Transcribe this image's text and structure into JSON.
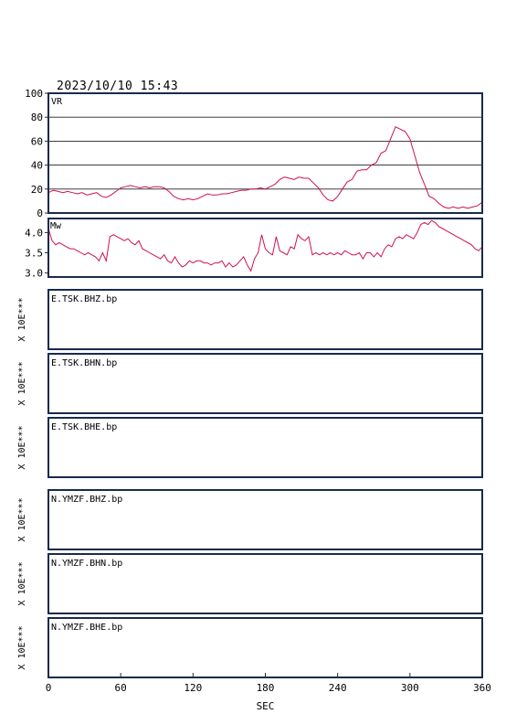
{
  "header": {
    "datetime": "2023/10/10  15:43"
  },
  "colors": {
    "line": "#d0104c",
    "frame": "#1a2a4a",
    "text": "#000000"
  },
  "chart_data": [
    {
      "type": "line",
      "label": "VR",
      "ylim": [
        0,
        100
      ],
      "yticks": [
        "0",
        "20",
        "40",
        "60",
        "80",
        "100"
      ],
      "grid": true,
      "x": [
        0,
        4,
        8,
        12,
        16,
        20,
        24,
        28,
        32,
        36,
        40,
        44,
        48,
        52,
        56,
        60,
        64,
        68,
        72,
        76,
        80,
        84,
        88,
        92,
        96,
        100,
        104,
        108,
        112,
        116,
        120,
        124,
        128,
        132,
        136,
        140,
        144,
        148,
        152,
        156,
        160,
        164,
        168,
        172,
        176,
        180,
        184,
        188,
        192,
        196,
        200,
        204,
        208,
        212,
        216,
        220,
        224,
        228,
        232,
        236,
        240,
        244,
        248,
        252,
        256,
        260,
        264,
        268,
        272,
        276,
        280,
        284,
        288,
        292,
        296,
        300,
        304,
        308,
        312,
        316,
        320,
        324,
        328,
        332,
        336,
        340,
        344,
        348,
        352,
        356,
        360
      ],
      "y": [
        17,
        19,
        18,
        17,
        18,
        17,
        16,
        17,
        15,
        16,
        17,
        14,
        13,
        15,
        18,
        21,
        22,
        23,
        22,
        21,
        22,
        21,
        22,
        22,
        21,
        18,
        14,
        12,
        11,
        12,
        11,
        12,
        14,
        16,
        15,
        15,
        16,
        16,
        17,
        18,
        19,
        19,
        20,
        20,
        21,
        20,
        22,
        24,
        28,
        30,
        29,
        28,
        30,
        29,
        29,
        25,
        21,
        15,
        11,
        10,
        14,
        20,
        26,
        28,
        35,
        36,
        36,
        40,
        42,
        50,
        52,
        62,
        72,
        70,
        68,
        62,
        48,
        34,
        24,
        14,
        12,
        8,
        5,
        4,
        5,
        4,
        5,
        4,
        5,
        6,
        9
      ]
    },
    {
      "type": "line",
      "label": "Mw",
      "ylim": [
        2.9,
        4.35
      ],
      "yticks": [
        "3.0",
        "3.5",
        "4.0"
      ],
      "yticks_values": [
        3.0,
        3.5,
        4.0
      ],
      "x": [
        0,
        3,
        6,
        9,
        12,
        15,
        18,
        21,
        24,
        27,
        30,
        33,
        36,
        39,
        42,
        45,
        48,
        51,
        54,
        57,
        60,
        63,
        66,
        69,
        72,
        75,
        78,
        81,
        84,
        87,
        90,
        93,
        96,
        99,
        102,
        105,
        108,
        111,
        114,
        117,
        120,
        123,
        126,
        129,
        132,
        135,
        138,
        141,
        144,
        147,
        150,
        153,
        156,
        159,
        162,
        165,
        168,
        171,
        174,
        177,
        180,
        183,
        186,
        189,
        192,
        195,
        198,
        201,
        204,
        207,
        210,
        213,
        216,
        219,
        222,
        225,
        228,
        231,
        234,
        237,
        240,
        243,
        246,
        249,
        252,
        255,
        258,
        261,
        264,
        267,
        270,
        273,
        276,
        279,
        282,
        285,
        288,
        291,
        294,
        297,
        300,
        303,
        306,
        309,
        312,
        315,
        318,
        321,
        324,
        327,
        330,
        333,
        336,
        339,
        342,
        345,
        348,
        351,
        354,
        357,
        360
      ],
      "y": [
        4.1,
        3.8,
        3.7,
        3.75,
        3.7,
        3.65,
        3.6,
        3.6,
        3.55,
        3.5,
        3.45,
        3.5,
        3.45,
        3.4,
        3.3,
        3.5,
        3.3,
        3.9,
        3.95,
        3.9,
        3.85,
        3.8,
        3.85,
        3.75,
        3.7,
        3.8,
        3.6,
        3.55,
        3.5,
        3.45,
        3.4,
        3.35,
        3.45,
        3.3,
        3.25,
        3.4,
        3.25,
        3.15,
        3.2,
        3.3,
        3.25,
        3.3,
        3.3,
        3.25,
        3.25,
        3.2,
        3.25,
        3.25,
        3.3,
        3.15,
        3.25,
        3.15,
        3.2,
        3.3,
        3.4,
        3.2,
        3.05,
        3.35,
        3.5,
        3.95,
        3.6,
        3.5,
        3.45,
        3.9,
        3.55,
        3.5,
        3.45,
        3.65,
        3.6,
        3.95,
        3.85,
        3.8,
        3.9,
        3.45,
        3.5,
        3.45,
        3.5,
        3.45,
        3.5,
        3.45,
        3.5,
        3.45,
        3.55,
        3.5,
        3.45,
        3.45,
        3.5,
        3.35,
        3.5,
        3.5,
        3.4,
        3.5,
        3.4,
        3.6,
        3.7,
        3.65,
        3.85,
        3.9,
        3.85,
        3.95,
        3.9,
        3.85,
        4.0,
        4.2,
        4.25,
        4.2,
        4.3,
        4.25,
        4.15,
        4.1,
        4.05,
        4.0,
        3.95,
        3.9,
        3.85,
        3.8,
        3.75,
        3.7,
        3.6,
        3.55,
        3.65
      ]
    }
  ],
  "traces": [
    {
      "label": "E.TSK.BHZ.bp",
      "scale": "X 10E***"
    },
    {
      "label": "E.TSK.BHN.bp",
      "scale": "X 10E***"
    },
    {
      "label": "E.TSK.BHE.bp",
      "scale": "X 10E***"
    },
    {
      "label": "N.YMZF.BHZ.bp",
      "scale": "X 10E***"
    },
    {
      "label": "N.YMZF.BHN.bp",
      "scale": "X 10E***"
    },
    {
      "label": "N.YMZF.BHE.bp",
      "scale": "X 10E***"
    }
  ],
  "xaxis": {
    "label": "SEC",
    "xlim": [
      0,
      360
    ],
    "ticks": [
      0,
      60,
      120,
      180,
      240,
      300,
      360
    ],
    "tick_labels": [
      "0",
      "60",
      "120",
      "180",
      "240",
      "300",
      "360"
    ]
  }
}
